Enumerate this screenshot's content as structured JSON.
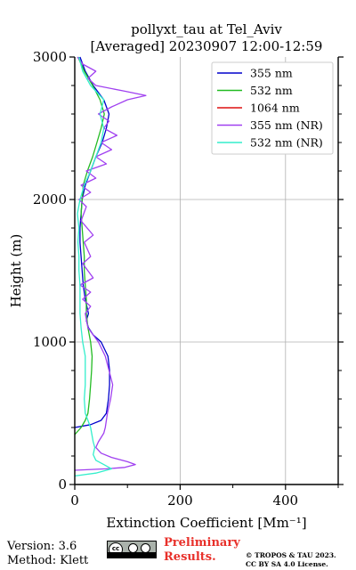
{
  "chart_data": {
    "type": "line",
    "title_line1": "pollyxt_tau at Tel_Aviv",
    "title_line2": "[Averaged] 20230907 12:00-12:59",
    "xlabel": "Extinction Coefficient [Mm⁻¹]",
    "ylabel": "Height (m)",
    "xlim": [
      0,
      500
    ],
    "ylim": [
      0,
      3000
    ],
    "xticks": [
      0,
      200,
      400
    ],
    "yticks": [
      0,
      1000,
      2000,
      3000
    ],
    "grid": true,
    "legend_position": "top-right",
    "series": [
      {
        "name": "355 nm",
        "color": "#0000cc",
        "points": [
          [
            0,
            400
          ],
          [
            30,
            420
          ],
          [
            50,
            450
          ],
          [
            60,
            500
          ],
          [
            64,
            600
          ],
          [
            66,
            700
          ],
          [
            66,
            800
          ],
          [
            63,
            900
          ],
          [
            50,
            1000
          ],
          [
            35,
            1050
          ],
          [
            26,
            1100
          ],
          [
            22,
            1150
          ],
          [
            26,
            1200
          ],
          [
            20,
            1300
          ],
          [
            16,
            1400
          ],
          [
            14,
            1500
          ],
          [
            12,
            1600
          ],
          [
            10,
            1700
          ],
          [
            10,
            1800
          ],
          [
            12,
            1900
          ],
          [
            14,
            2000
          ],
          [
            20,
            2100
          ],
          [
            30,
            2200
          ],
          [
            40,
            2300
          ],
          [
            52,
            2400
          ],
          [
            60,
            2500
          ],
          [
            65,
            2600
          ],
          [
            55,
            2700
          ],
          [
            35,
            2800
          ],
          [
            20,
            2900
          ],
          [
            10,
            3000
          ]
        ]
      },
      {
        "name": "532 nm",
        "color": "#22bb22",
        "points": [
          [
            0,
            350
          ],
          [
            12,
            400
          ],
          [
            20,
            450
          ],
          [
            25,
            500
          ],
          [
            28,
            600
          ],
          [
            30,
            700
          ],
          [
            32,
            800
          ],
          [
            33,
            900
          ],
          [
            30,
            1000
          ],
          [
            25,
            1100
          ],
          [
            22,
            1200
          ],
          [
            22,
            1300
          ],
          [
            20,
            1400
          ],
          [
            18,
            1500
          ],
          [
            18,
            1600
          ],
          [
            16,
            1700
          ],
          [
            14,
            1800
          ],
          [
            12,
            1900
          ],
          [
            14,
            2000
          ],
          [
            16,
            2100
          ],
          [
            24,
            2200
          ],
          [
            34,
            2300
          ],
          [
            42,
            2400
          ],
          [
            50,
            2500
          ],
          [
            56,
            2600
          ],
          [
            48,
            2700
          ],
          [
            34,
            2800
          ],
          [
            18,
            2900
          ],
          [
            6,
            3000
          ]
        ]
      },
      {
        "name": "1064 nm",
        "color": "#dd1111",
        "points": []
      },
      {
        "name": "355 nm (NR)",
        "color": "#a040f0",
        "points": [
          [
            0,
            100
          ],
          [
            60,
            110
          ],
          [
            95,
            120
          ],
          [
            115,
            140
          ],
          [
            100,
            160
          ],
          [
            70,
            190
          ],
          [
            50,
            220
          ],
          [
            40,
            260
          ],
          [
            45,
            300
          ],
          [
            55,
            360
          ],
          [
            58,
            400
          ],
          [
            62,
            500
          ],
          [
            68,
            600
          ],
          [
            72,
            700
          ],
          [
            65,
            800
          ],
          [
            58,
            900
          ],
          [
            45,
            1000
          ],
          [
            25,
            1100
          ],
          [
            20,
            1200
          ],
          [
            30,
            1250
          ],
          [
            15,
            1300
          ],
          [
            30,
            1350
          ],
          [
            10,
            1400
          ],
          [
            35,
            1450
          ],
          [
            15,
            1550
          ],
          [
            30,
            1600
          ],
          [
            18,
            1700
          ],
          [
            35,
            1750
          ],
          [
            12,
            1850
          ],
          [
            22,
            1950
          ],
          [
            8,
            2000
          ],
          [
            30,
            2050
          ],
          [
            12,
            2100
          ],
          [
            40,
            2150
          ],
          [
            22,
            2200
          ],
          [
            60,
            2250
          ],
          [
            40,
            2300
          ],
          [
            70,
            2350
          ],
          [
            50,
            2400
          ],
          [
            80,
            2450
          ],
          [
            55,
            2500
          ],
          [
            65,
            2550
          ],
          [
            45,
            2600
          ],
          [
            70,
            2650
          ],
          [
            100,
            2700
          ],
          [
            135,
            2730
          ],
          [
            95,
            2760
          ],
          [
            40,
            2800
          ],
          [
            25,
            2850
          ],
          [
            40,
            2900
          ],
          [
            15,
            2950
          ],
          [
            5,
            3000
          ]
        ]
      },
      {
        "name": "532 nm (NR)",
        "color": "#33eecc",
        "points": [
          [
            0,
            60
          ],
          [
            40,
            80
          ],
          [
            70,
            110
          ],
          [
            55,
            140
          ],
          [
            40,
            170
          ],
          [
            35,
            210
          ],
          [
            38,
            260
          ],
          [
            35,
            300
          ],
          [
            30,
            400
          ],
          [
            20,
            500
          ],
          [
            18,
            600
          ],
          [
            20,
            700
          ],
          [
            20,
            800
          ],
          [
            20,
            900
          ],
          [
            15,
            1000
          ],
          [
            12,
            1100
          ],
          [
            10,
            1200
          ],
          [
            10,
            1300
          ],
          [
            10,
            1400
          ],
          [
            8,
            1500
          ],
          [
            8,
            1600
          ],
          [
            6,
            1700
          ],
          [
            8,
            1800
          ],
          [
            5,
            1900
          ],
          [
            10,
            2000
          ],
          [
            18,
            2100
          ],
          [
            30,
            2200
          ],
          [
            40,
            2300
          ],
          [
            50,
            2400
          ],
          [
            55,
            2500
          ],
          [
            48,
            2600
          ],
          [
            55,
            2700
          ],
          [
            30,
            2800
          ],
          [
            15,
            2900
          ],
          [
            8,
            3000
          ]
        ]
      }
    ]
  },
  "footer": {
    "version": "Version: 3.6",
    "method": "Method: Klett",
    "preliminary_line1": "Preliminary",
    "preliminary_line2": "Results.",
    "copyright_line1": "© TROPOS & TAU 2023.",
    "copyright_line2": "CC BY SA 4.0 License.",
    "license_badge": {
      "main": "cc",
      "sub": "BY SA"
    }
  }
}
